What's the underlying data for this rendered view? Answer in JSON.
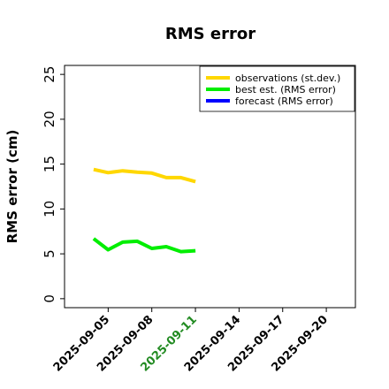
{
  "chart_data": {
    "type": "line",
    "title": "RMS error",
    "xlabel": "",
    "ylabel": "RMS error (cm)",
    "xlim": [
      "2025-09-02",
      "2025-09-22"
    ],
    "ylim": [
      -1,
      26
    ],
    "yticks": [
      0,
      5,
      10,
      15,
      20,
      25
    ],
    "xticks": [
      "2025-09-05",
      "2025-09-08",
      "2025-09-11",
      "2025-09-14",
      "2025-09-17",
      "2025-09-20"
    ],
    "highlight_tick": "2025-09-11",
    "highlight_color": "#228B22",
    "grid": false,
    "legend_position": "top-right",
    "series": [
      {
        "name": "observations (st.dev.)",
        "color": "#FFD700",
        "x": [
          "2025-09-04",
          "2025-09-05",
          "2025-09-06",
          "2025-09-07",
          "2025-09-08",
          "2025-09-09",
          "2025-09-10",
          "2025-09-11"
        ],
        "values": [
          14.4,
          14.05,
          14.25,
          14.1,
          14.0,
          13.5,
          13.5,
          13.05
        ]
      },
      {
        "name": "best est. (RMS error)",
        "color": "#00EE00",
        "x": [
          "2025-09-04",
          "2025-09-05",
          "2025-09-06",
          "2025-09-07",
          "2025-09-08",
          "2025-09-09",
          "2025-09-10",
          "2025-09-11"
        ],
        "values": [
          6.7,
          5.45,
          6.3,
          6.4,
          5.6,
          5.8,
          5.25,
          5.35
        ]
      },
      {
        "name": "forecast (RMS error)",
        "color": "#0000FF",
        "x": [],
        "values": []
      }
    ]
  }
}
